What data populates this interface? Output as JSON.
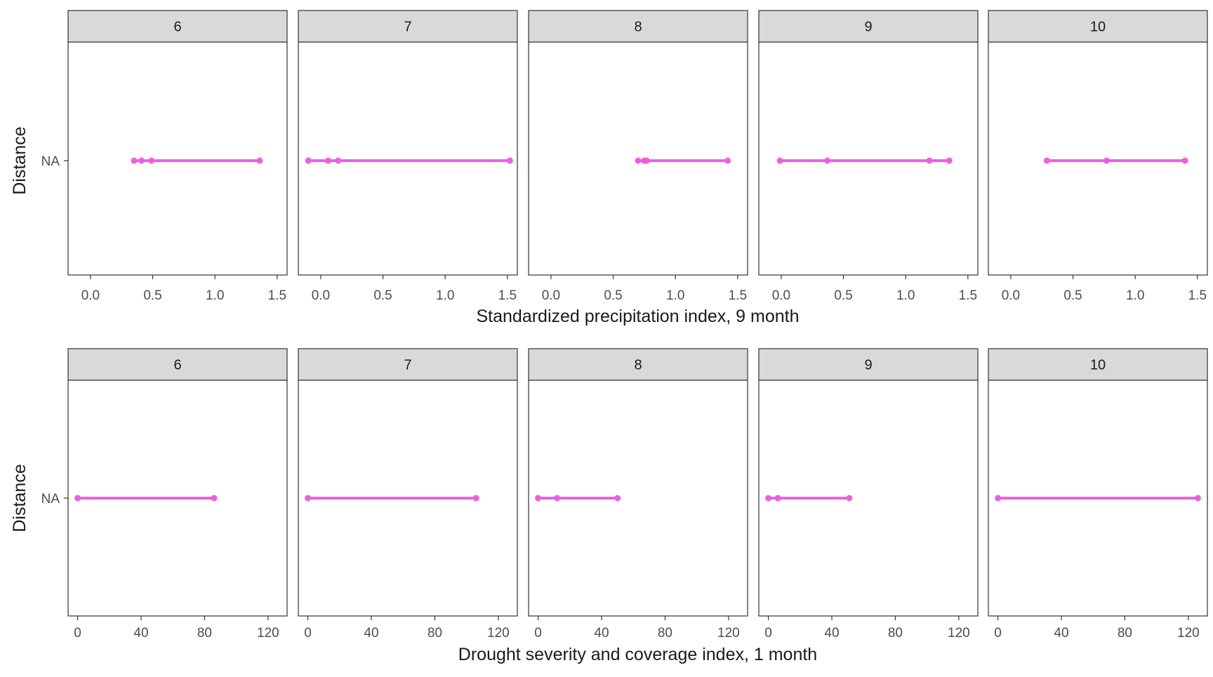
{
  "chart_data": [
    {
      "type": "line",
      "facet_variable_values": [
        "6",
        "7",
        "8",
        "9",
        "10"
      ],
      "xlabel": "Standardized precipitation index, 9 month",
      "ylabel": "Distance",
      "y_categories": [
        "NA"
      ],
      "xlim": [
        -0.18,
        1.58
      ],
      "xticks": [
        0.0,
        0.5,
        1.0,
        1.5
      ],
      "xtick_labels": [
        "0.0",
        "0.5",
        "1.0",
        "1.5"
      ],
      "series": [
        {
          "facet": "6",
          "x": [
            0.35,
            0.41,
            0.49,
            1.36
          ],
          "y": "NA"
        },
        {
          "facet": "7",
          "x": [
            -0.1,
            0.06,
            0.14,
            1.52
          ],
          "y": "NA"
        },
        {
          "facet": "8",
          "x": [
            0.7,
            0.75,
            0.77,
            1.42
          ],
          "y": "NA"
        },
        {
          "facet": "9",
          "x": [
            -0.01,
            0.37,
            1.19,
            1.35
          ],
          "y": "NA"
        },
        {
          "facet": "10",
          "x": [
            0.29,
            0.77,
            1.4
          ],
          "y": "NA"
        }
      ],
      "grid": false,
      "line_color": "#ee5fe0"
    },
    {
      "type": "line",
      "facet_variable_values": [
        "6",
        "7",
        "8",
        "9",
        "10"
      ],
      "xlabel": "Drought severity and coverage index, 1 month",
      "ylabel": "Distance",
      "y_categories": [
        "NA"
      ],
      "xlim": [
        -6,
        132
      ],
      "xticks": [
        0,
        40,
        80,
        120
      ],
      "xtick_labels": [
        "0",
        "40",
        "80",
        "120"
      ],
      "series": [
        {
          "facet": "6",
          "x": [
            0,
            86
          ],
          "y": "NA"
        },
        {
          "facet": "7",
          "x": [
            0,
            106
          ],
          "y": "NA"
        },
        {
          "facet": "8",
          "x": [
            0,
            12,
            50
          ],
          "y": "NA"
        },
        {
          "facet": "9",
          "x": [
            0,
            6,
            51
          ],
          "y": "NA"
        },
        {
          "facet": "10",
          "x": [
            0,
            126
          ],
          "y": "NA"
        }
      ],
      "grid": false,
      "line_color": "#ee5fe0"
    }
  ]
}
